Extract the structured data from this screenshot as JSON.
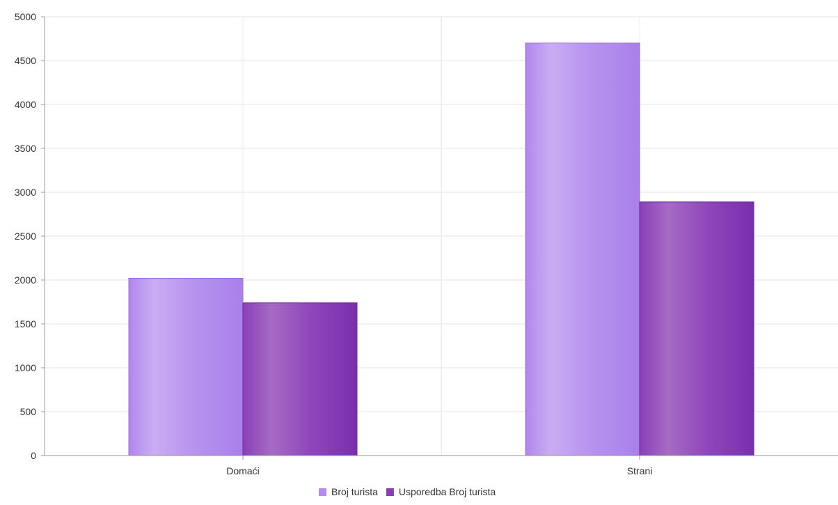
{
  "chart_data": {
    "type": "bar",
    "categories": [
      "Domaći",
      "Strani"
    ],
    "series": [
      {
        "name": "Broj turista",
        "values": [
          2020,
          4700
        ],
        "color": "#b48cee"
      },
      {
        "name": "Usporedba Broj turista",
        "values": [
          1740,
          2890
        ],
        "color": "#8a3cb8"
      }
    ],
    "ylim": [
      0,
      5000
    ],
    "yticks": [
      0,
      500,
      1000,
      1500,
      2000,
      2500,
      3000,
      3500,
      4000,
      4500,
      5000
    ],
    "grid": true,
    "legend": "bottom-center"
  }
}
